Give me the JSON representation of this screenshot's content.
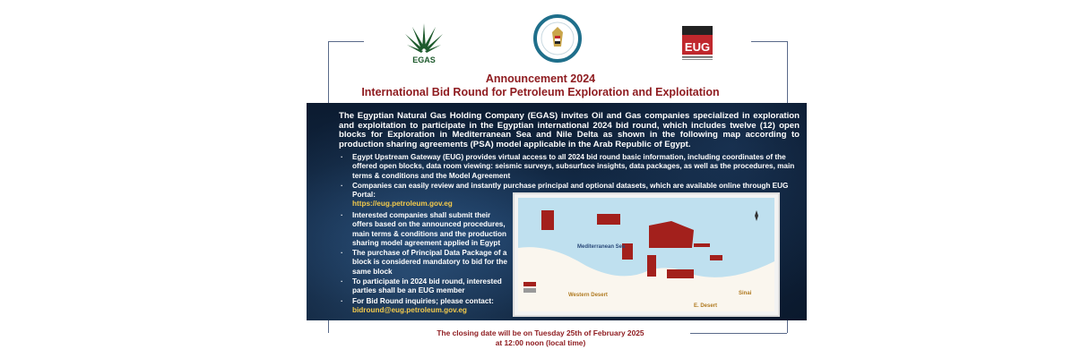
{
  "logos": {
    "left": "EGAS",
    "center": "Ministry of Petroleum & Mineral Resources",
    "right": "EUG"
  },
  "header": {
    "title": "Announcement 2024",
    "subtitle": "International Bid Round for Petroleum Exploration and Exploitation"
  },
  "intro": "The Egyptian Natural Gas Holding Company (EGAS) invites Oil and Gas companies specialized in exploration and exploitation to participate in the Egyptian international 2024 bid round, which includes twelve (12) open blocks for Exploration in Mediterranean Sea and Nile Delta as shown in the following map according to production sharing agreements (PSA) model applicable in the Arab Republic of Egypt.",
  "bullets": [
    {
      "text": "Egypt Upstream Gateway (EUG) provides virtual access to all 2024 bid round basic information, including coordinates of the offered open blocks, data room viewing: seismic surveys, subsurface insights, data packages, as well as the procedures, main terms & conditions and the Model Agreement"
    },
    {
      "text": "Companies can easily review and instantly purchase principal and optional datasets, which are available online through EUG Portal:",
      "link": "https://eug.petroleum.gov.eg"
    },
    {
      "text": "Interested companies shall submit their offers based on the announced procedures, main terms & conditions and the production sharing model agreement applied in Egypt"
    },
    {
      "text": "The purchase of Principal Data Package of a block is considered mandatory to bid for the same block"
    },
    {
      "text": "To participate in 2024 bid round, interested parties shall be an EUG member"
    },
    {
      "text": "For Bid Round inquiries; please contact:",
      "link": "bidround@eug.petroleum.gov.eg"
    }
  ],
  "map": {
    "sea": "Mediterranean Sea",
    "west": "Western Desert",
    "east": "Sinai",
    "south": "E. Desert"
  },
  "closing": {
    "line1": "The closing date will be on Tuesday 25th of February 2025",
    "line2": "at 12:00 noon (local time)"
  },
  "colors": {
    "accent": "#8e1b1f",
    "panel": "#10243d",
    "link": "#f2c94c",
    "block": "#a3201c",
    "sea": "#bfe0ef"
  }
}
